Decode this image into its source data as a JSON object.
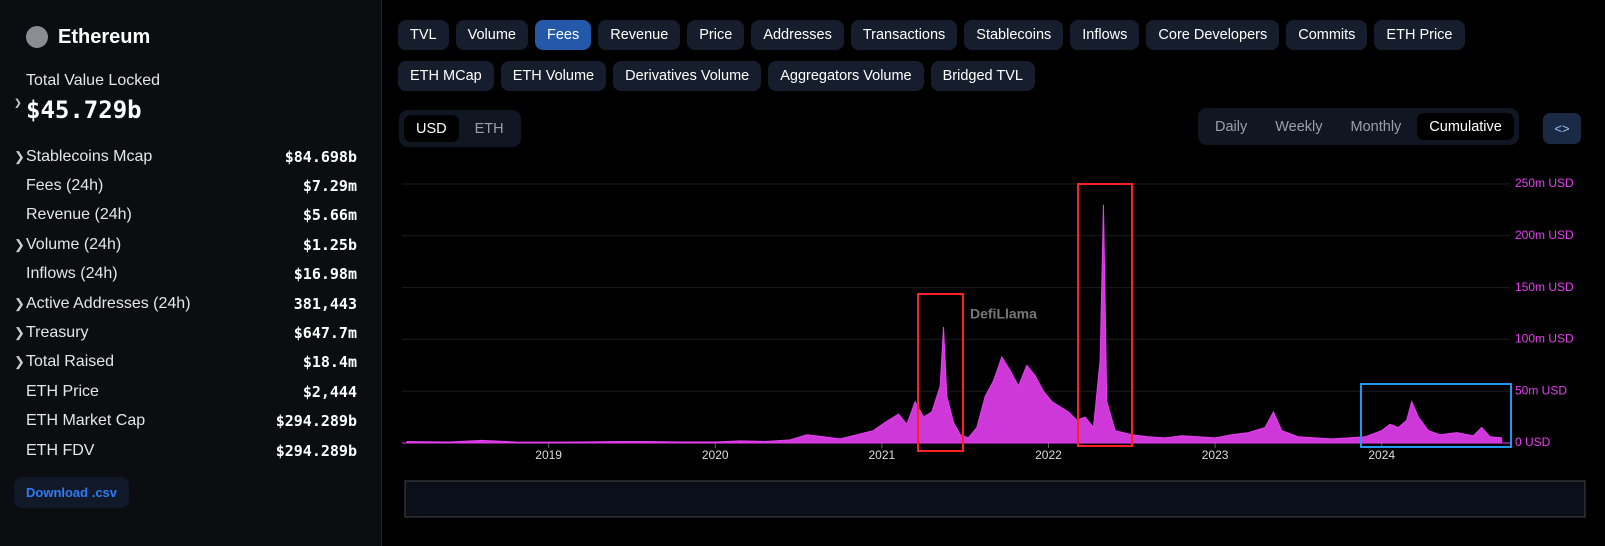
{
  "sidebar": {
    "name": "Ethereum",
    "tvl_label": "Total Value Locked",
    "tvl_value": "$45.729b",
    "stats": [
      {
        "label": "Stablecoins Mcap",
        "value": "$84.698b",
        "expandable": true
      },
      {
        "label": "Fees (24h)",
        "value": "$7.29m",
        "expandable": false
      },
      {
        "label": "Revenue (24h)",
        "value": "$5.66m",
        "expandable": false
      },
      {
        "label": "Volume (24h)",
        "value": "$1.25b",
        "expandable": true
      },
      {
        "label": "Inflows (24h)",
        "value": "$16.98m",
        "expandable": false
      },
      {
        "label": "Active Addresses (24h)",
        "value": "381,443",
        "expandable": true
      },
      {
        "label": "Treasury",
        "value": "$647.7m",
        "expandable": true
      },
      {
        "label": "Total Raised",
        "value": "$18.4m",
        "expandable": true
      },
      {
        "label": "ETH Price",
        "value": "$2,444",
        "expandable": false
      },
      {
        "label": "ETH Market Cap",
        "value": "$294.289b",
        "expandable": false
      },
      {
        "label": "ETH FDV",
        "value": "$294.289b",
        "expandable": false
      }
    ],
    "download": "Download .csv"
  },
  "tabs": [
    [
      "TVL",
      "Volume",
      "Fees",
      "Revenue",
      "Price",
      "Addresses",
      "Transactions",
      "Stablecoins",
      "Inflows",
      "Core Developers",
      "Commits",
      "ETH Price"
    ],
    [
      "ETH MCap",
      "ETH Volume",
      "Derivatives Volume",
      "Aggregators Volume",
      "Bridged TVL"
    ]
  ],
  "active_tab": [
    0,
    2
  ],
  "currencies": [
    "USD",
    "ETH"
  ],
  "active_currency": 0,
  "periods": [
    "Daily",
    "Weekly",
    "Monthly",
    "Cumulative"
  ],
  "active_period": 3,
  "watermark": "DefiLlama",
  "chart_data": {
    "type": "area",
    "color": "#e63ef0",
    "x": [
      2018.15,
      2018.4,
      2018.6,
      2018.8,
      2019.0,
      2019.2,
      2019.4,
      2019.6,
      2019.8,
      2020.0,
      2020.15,
      2020.3,
      2020.45,
      2020.55,
      2020.65,
      2020.75,
      2020.85,
      2020.95,
      2021.02,
      2021.1,
      2021.15,
      2021.2,
      2021.25,
      2021.3,
      2021.35,
      2021.37,
      2021.39,
      2021.43,
      2021.47,
      2021.52,
      2021.57,
      2021.62,
      2021.67,
      2021.72,
      2021.77,
      2021.82,
      2021.87,
      2021.92,
      2021.97,
      2022.02,
      2022.07,
      2022.12,
      2022.17,
      2022.22,
      2022.27,
      2022.31,
      2022.33,
      2022.35,
      2022.4,
      2022.5,
      2022.6,
      2022.7,
      2022.8,
      2022.9,
      2023.0,
      2023.1,
      2023.2,
      2023.3,
      2023.35,
      2023.4,
      2023.5,
      2023.6,
      2023.7,
      2023.8,
      2023.9,
      2024.0,
      2024.05,
      2024.1,
      2024.15,
      2024.18,
      2024.22,
      2024.28,
      2024.35,
      2024.45,
      2024.55,
      2024.6,
      2024.65,
      2024.72
    ],
    "values": [
      1500000,
      1000000,
      2500000,
      1000000,
      800000,
      1000000,
      1500000,
      1500000,
      1000000,
      1000000,
      2000000,
      1500000,
      3000000,
      8000000,
      6000000,
      4000000,
      8000000,
      12000000,
      20000000,
      28000000,
      18000000,
      40000000,
      25000000,
      30000000,
      55000000,
      112000000,
      45000000,
      20000000,
      8000000,
      5000000,
      15000000,
      45000000,
      60000000,
      83000000,
      70000000,
      55000000,
      75000000,
      65000000,
      50000000,
      40000000,
      35000000,
      30000000,
      22000000,
      25000000,
      15000000,
      80000000,
      230000000,
      40000000,
      12000000,
      8000000,
      6000000,
      5000000,
      7000000,
      6000000,
      5000000,
      8000000,
      10000000,
      15000000,
      30000000,
      12000000,
      6000000,
      5000000,
      4000000,
      5000000,
      6000000,
      12000000,
      18000000,
      15000000,
      22000000,
      40000000,
      25000000,
      12000000,
      8000000,
      10000000,
      7000000,
      15000000,
      6000000,
      5000000
    ],
    "xlim": [
      2018.12,
      2024.77
    ],
    "xticks": [
      2019,
      2020,
      2021,
      2022,
      2023,
      2024
    ],
    "ylim": [
      0,
      250000000
    ],
    "yticks": [
      {
        "value": 0,
        "label": "0 USD"
      },
      {
        "value": 50000000,
        "label": "50m USD"
      },
      {
        "value": 100000000,
        "label": "100m USD"
      },
      {
        "value": 150000000,
        "label": "150m USD"
      },
      {
        "value": 200000000,
        "label": "200m USD"
      },
      {
        "value": 250000000,
        "label": "250m USD"
      }
    ],
    "grid": true
  }
}
